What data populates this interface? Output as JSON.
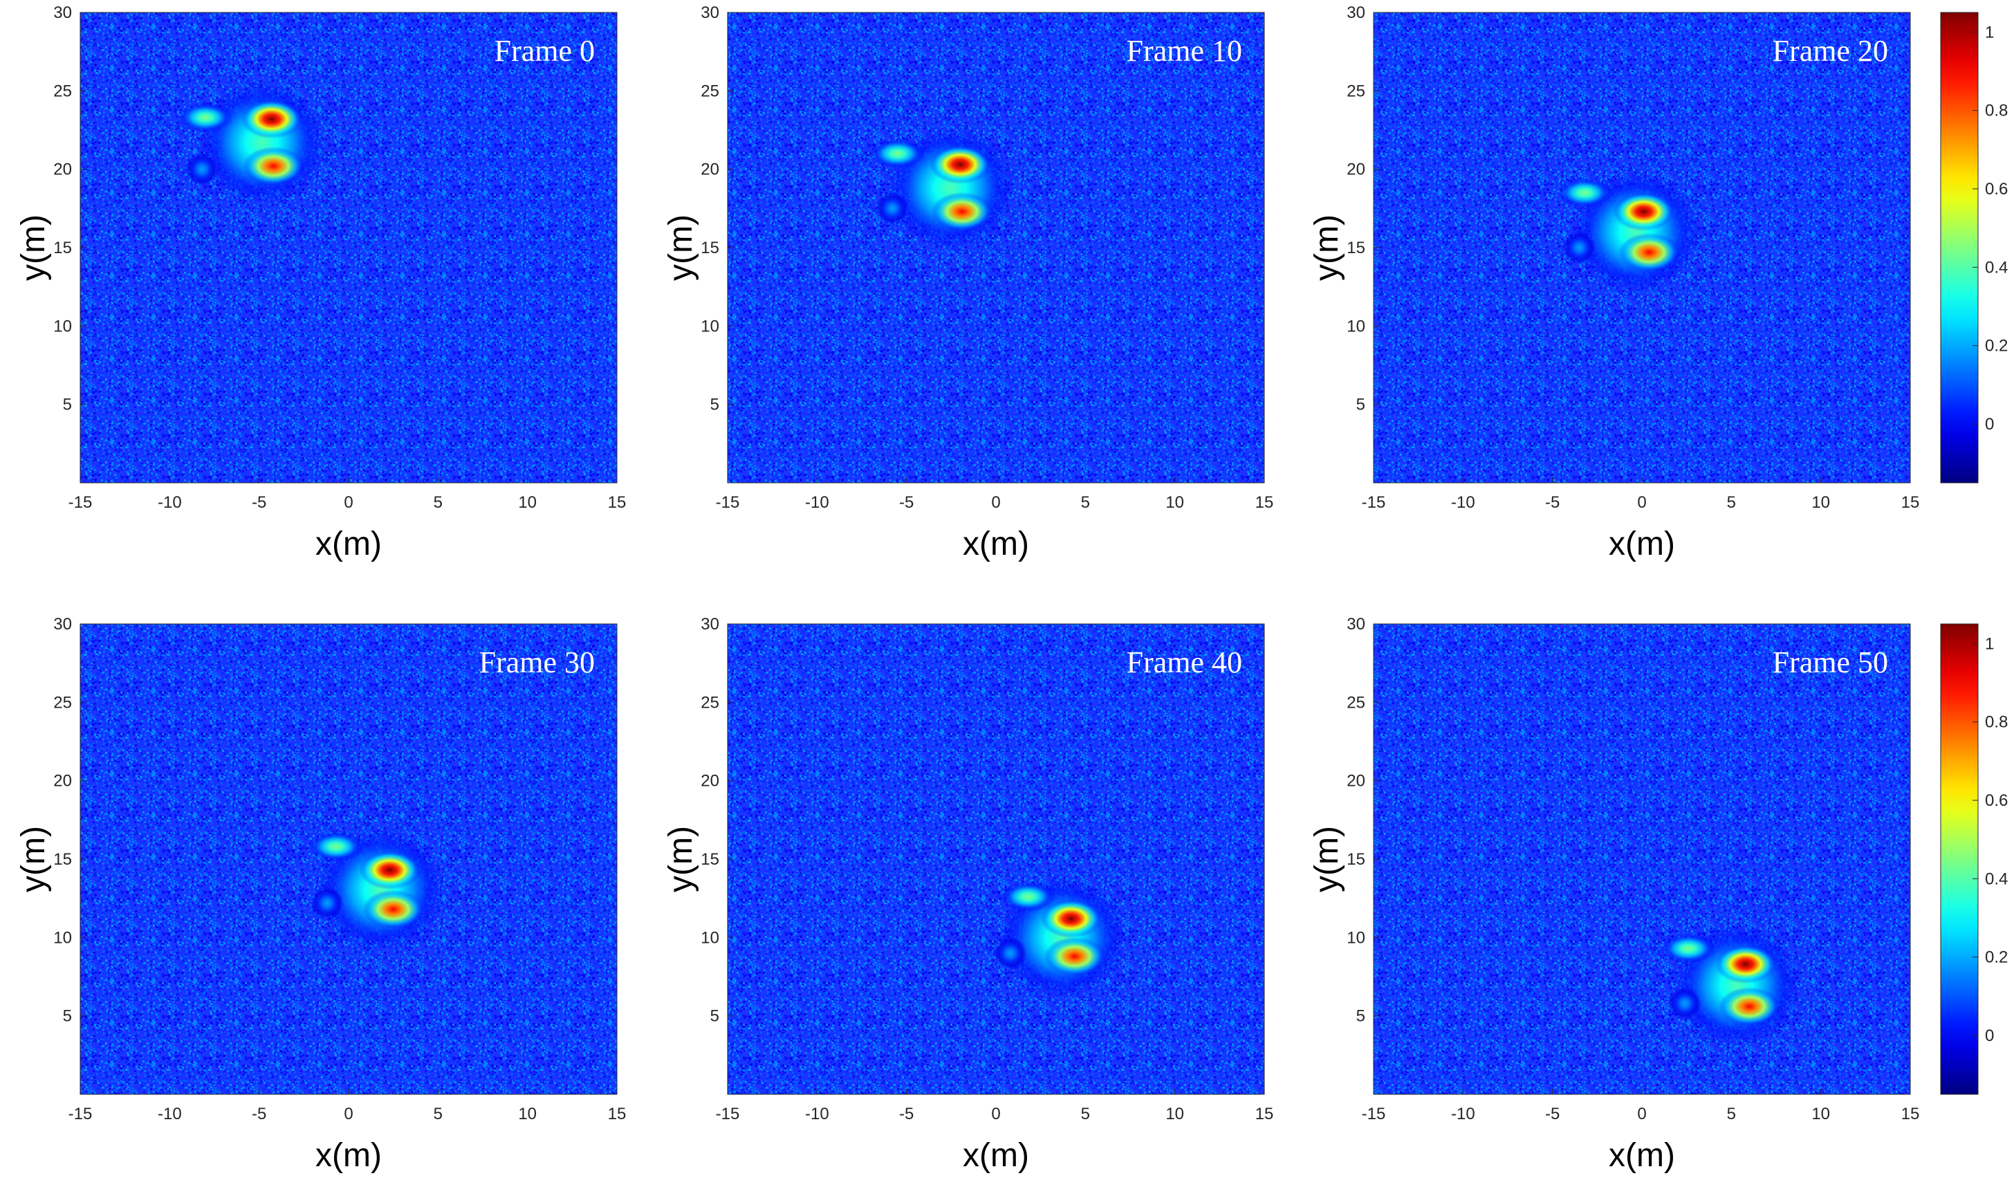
{
  "figure": {
    "colormap": "jet",
    "background_color": "#1a33ff"
  },
  "chart_data": [
    {
      "type": "heatmap",
      "annotation": "Frame 0",
      "xlabel": "x(m)",
      "ylabel": "y(m)",
      "xlim": [
        -15,
        15
      ],
      "ylim": [
        0,
        30
      ],
      "xticks": [
        -15,
        -10,
        -5,
        0,
        5,
        10,
        15
      ],
      "yticks": [
        5,
        10,
        15,
        20,
        25,
        30
      ],
      "blobs": [
        {
          "x": -4.3,
          "y": 23.2,
          "value": 1.0
        },
        {
          "x": -4.2,
          "y": 20.2,
          "value": 0.88
        },
        {
          "x": -8.0,
          "y": 23.3,
          "value": 0.5
        },
        {
          "x": -8.2,
          "y": 20.0,
          "value": 0.28
        }
      ]
    },
    {
      "type": "heatmap",
      "annotation": "Frame 10",
      "xlabel": "x(m)",
      "ylabel": "y(m)",
      "xlim": [
        -15,
        15
      ],
      "ylim": [
        0,
        30
      ],
      "xticks": [
        -15,
        -10,
        -5,
        0,
        5,
        10,
        15
      ],
      "yticks": [
        5,
        10,
        15,
        20,
        25,
        30
      ],
      "blobs": [
        {
          "x": -2.0,
          "y": 20.3,
          "value": 1.0
        },
        {
          "x": -1.9,
          "y": 17.3,
          "value": 0.88
        },
        {
          "x": -5.5,
          "y": 21.0,
          "value": 0.5
        },
        {
          "x": -5.8,
          "y": 17.5,
          "value": 0.28
        }
      ]
    },
    {
      "type": "heatmap",
      "annotation": "Frame 20",
      "xlabel": "x(m)",
      "ylabel": "y(m)",
      "xlim": [
        -15,
        15
      ],
      "ylim": [
        0,
        30
      ],
      "xticks": [
        -15,
        -10,
        -5,
        0,
        5,
        10,
        15
      ],
      "yticks": [
        5,
        10,
        15,
        20,
        25,
        30
      ],
      "colorbar": {
        "ticks": [
          0,
          0.2,
          0.4,
          0.6,
          0.8,
          1
        ],
        "range": [
          -0.15,
          1.05
        ]
      },
      "blobs": [
        {
          "x": 0.1,
          "y": 17.3,
          "value": 1.0
        },
        {
          "x": 0.4,
          "y": 14.7,
          "value": 0.88
        },
        {
          "x": -3.2,
          "y": 18.5,
          "value": 0.5
        },
        {
          "x": -3.5,
          "y": 15.0,
          "value": 0.28
        }
      ]
    },
    {
      "type": "heatmap",
      "annotation": "Frame 30",
      "xlabel": "x(m)",
      "ylabel": "y(m)",
      "xlim": [
        -15,
        15
      ],
      "ylim": [
        0,
        30
      ],
      "xticks": [
        -15,
        -10,
        -5,
        0,
        5,
        10,
        15
      ],
      "yticks": [
        5,
        10,
        15,
        20,
        25,
        30
      ],
      "blobs": [
        {
          "x": 2.3,
          "y": 14.3,
          "value": 1.0
        },
        {
          "x": 2.5,
          "y": 11.8,
          "value": 0.88
        },
        {
          "x": -0.7,
          "y": 15.8,
          "value": 0.5
        },
        {
          "x": -1.2,
          "y": 12.2,
          "value": 0.28
        }
      ]
    },
    {
      "type": "heatmap",
      "annotation": "Frame 40",
      "xlabel": "x(m)",
      "ylabel": "y(m)",
      "xlim": [
        -15,
        15
      ],
      "ylim": [
        0,
        30
      ],
      "xticks": [
        -15,
        -10,
        -5,
        0,
        5,
        10,
        15
      ],
      "yticks": [
        5,
        10,
        15,
        20,
        25,
        30
      ],
      "blobs": [
        {
          "x": 4.2,
          "y": 11.2,
          "value": 1.0
        },
        {
          "x": 4.4,
          "y": 8.8,
          "value": 0.88
        },
        {
          "x": 1.8,
          "y": 12.6,
          "value": 0.5
        },
        {
          "x": 0.8,
          "y": 9.0,
          "value": 0.28
        }
      ]
    },
    {
      "type": "heatmap",
      "annotation": "Frame 50",
      "xlabel": "x(m)",
      "ylabel": "y(m)",
      "xlim": [
        -15,
        15
      ],
      "ylim": [
        0,
        30
      ],
      "xticks": [
        -15,
        -10,
        -5,
        0,
        5,
        10,
        15
      ],
      "yticks": [
        5,
        10,
        15,
        20,
        25,
        30
      ],
      "colorbar": {
        "ticks": [
          0,
          0.2,
          0.4,
          0.6,
          0.8,
          1
        ],
        "range": [
          -0.15,
          1.05
        ]
      },
      "blobs": [
        {
          "x": 5.8,
          "y": 8.3,
          "value": 1.0
        },
        {
          "x": 6.0,
          "y": 5.6,
          "value": 0.88
        },
        {
          "x": 2.6,
          "y": 9.3,
          "value": 0.5
        },
        {
          "x": 2.4,
          "y": 5.8,
          "value": 0.28
        }
      ]
    }
  ]
}
